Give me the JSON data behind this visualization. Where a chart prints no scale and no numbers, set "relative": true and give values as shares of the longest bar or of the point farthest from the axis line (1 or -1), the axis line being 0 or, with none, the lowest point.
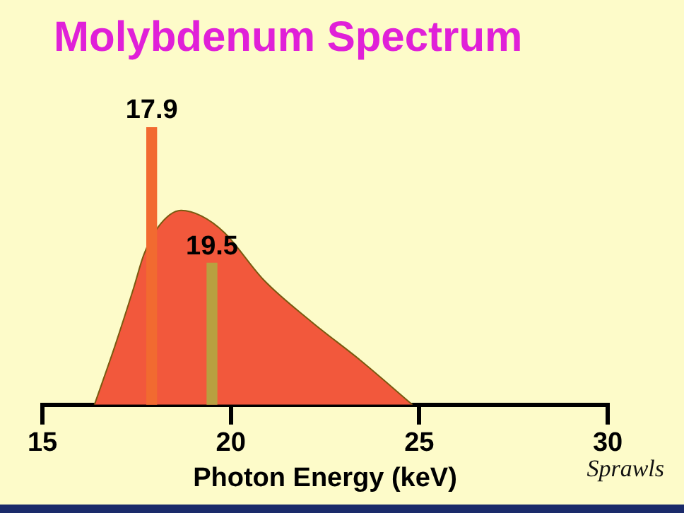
{
  "chart_data": {
    "type": "area",
    "title": "Molybdenum Spectrum",
    "xlabel": "Photon Energy (keV)",
    "relative": true,
    "xlim": [
      15,
      30
    ],
    "xticks": [
      15,
      20,
      25,
      30
    ],
    "grid": false,
    "legend": false,
    "annotations": [
      "Sprawls",
      {
        "text": "17.9",
        "x": 17.9,
        "y": 1
      },
      {
        "text": "19.5",
        "x": 19.5,
        "y": 0.51
      }
    ],
    "series": [
      {
        "color": "#f2583c",
        "x": [
          16.38,
          16.92,
          17.42,
          17.69,
          18.07,
          18.68,
          19.22,
          19.83,
          20.87,
          22.13,
          23.44,
          24.82
        ],
        "values": [
          0,
          0.21,
          0.42,
          0.54,
          0.64,
          0.7,
          0.68,
          0.62,
          0.45,
          0.3,
          0.16,
          0
        ]
      },
      {
        "type": "bar",
        "colors": [
          "#f26a30",
          "#b8a040"
        ],
        "x": [
          17.9,
          19.5
        ],
        "values": [
          1,
          0.51
        ]
      }
    ]
  }
}
